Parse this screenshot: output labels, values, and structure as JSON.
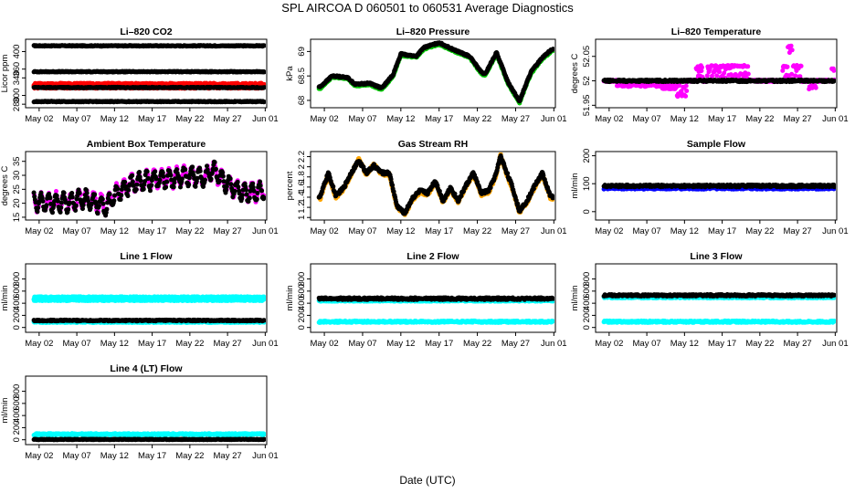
{
  "title": "SPL   AIRCOA D   060501 to 060531   Average Diagnostics",
  "xlabel": "Date (UTC)",
  "x_tick_labels": [
    "May 02",
    "May 07",
    "May 12",
    "May 17",
    "May 22",
    "May 27",
    "Jun 01"
  ],
  "x_tick_days": [
    2,
    7,
    12,
    17,
    22,
    27,
    32
  ],
  "x_range_days": [
    0.2,
    32.2
  ],
  "colors": {
    "black": "#000000",
    "red": "#ff0000",
    "green": "#00c800",
    "magenta": "#ff00ff",
    "orange": "#ffa500",
    "blue": "#0000ff",
    "cyan": "#00ffff"
  },
  "chart_data": [
    {
      "type": "scatter",
      "title": "Li–820 CO2",
      "ylabel": "Licor ppm",
      "yticks": [
        280,
        300,
        340,
        360,
        400
      ],
      "ylim": [
        272,
        428
      ],
      "series": [
        {
          "name": "ref-high",
          "color": "#000000",
          "shape": "flat",
          "level": 413,
          "amp": 1
        },
        {
          "name": "ref-mid",
          "color": "#000000",
          "shape": "flat",
          "level": 354,
          "amp": 1
        },
        {
          "name": "sample",
          "color": "#ff0000",
          "shape": "band",
          "level": 322,
          "amp": 6
        },
        {
          "name": "ref-low2",
          "color": "#000000",
          "shape": "flat",
          "level": 318,
          "amp": 1
        },
        {
          "name": "ref-low",
          "color": "#000000",
          "shape": "flat",
          "level": 286,
          "amp": 1
        }
      ]
    },
    {
      "type": "scatter",
      "title": "Li–820 Pressure",
      "ylabel": "kPa",
      "yticks": [
        68.0,
        68.5,
        69.0
      ],
      "ylim": [
        67.85,
        69.25
      ],
      "series": [
        {
          "name": "line2",
          "color": "#00c800",
          "shape": "wave",
          "amp": 0.03,
          "knots": [
            [
              1.5,
              68.25
            ],
            [
              3,
              68.48
            ],
            [
              5,
              68.45
            ],
            [
              6,
              68.3
            ],
            [
              8,
              68.32
            ],
            [
              9.5,
              68.22
            ],
            [
              11,
              68.5
            ],
            [
              12,
              68.92
            ],
            [
              14,
              68.88
            ],
            [
              15,
              69.05
            ],
            [
              17,
              69.15
            ],
            [
              19,
              69.0
            ],
            [
              21,
              68.88
            ],
            [
              22.5,
              68.55
            ],
            [
              23,
              68.5
            ],
            [
              24.5,
              68.95
            ],
            [
              26,
              68.35
            ],
            [
              27.5,
              67.95
            ],
            [
              29,
              68.55
            ],
            [
              30.5,
              68.85
            ],
            [
              31.8,
              69.02
            ]
          ]
        },
        {
          "name": "line1",
          "color": "#000000",
          "shape": "wave",
          "amp": 0.03,
          "knots": [
            [
              1.5,
              68.28
            ],
            [
              3,
              68.5
            ],
            [
              5,
              68.47
            ],
            [
              6,
              68.33
            ],
            [
              8,
              68.35
            ],
            [
              9.5,
              68.25
            ],
            [
              11,
              68.53
            ],
            [
              12,
              68.95
            ],
            [
              14,
              68.9
            ],
            [
              15,
              69.08
            ],
            [
              17,
              69.18
            ],
            [
              19,
              69.03
            ],
            [
              21,
              68.9
            ],
            [
              22.5,
              68.58
            ],
            [
              23,
              68.53
            ],
            [
              24.5,
              68.98
            ],
            [
              26,
              68.38
            ],
            [
              27.5,
              67.98
            ],
            [
              29,
              68.58
            ],
            [
              30.5,
              68.88
            ],
            [
              31.8,
              69.05
            ]
          ]
        }
      ]
    },
    {
      "type": "scatter",
      "title": "Li–820 Temperature",
      "ylabel": "degrees C",
      "yticks": [
        51.95,
        52.0,
        52.05
      ],
      "ylim": [
        51.945,
        52.085
      ],
      "series": [
        {
          "name": "cell-temp",
          "color": "#ff00ff",
          "shape": "steps",
          "level": 52.0,
          "segments": [
            [
              3,
              9,
              51.99
            ],
            [
              9,
              11,
              51.985
            ],
            [
              11,
              12.3,
              51.97
            ],
            [
              13.5,
              14.5,
              52.03
            ],
            [
              15,
              20.5,
              52.03
            ],
            [
              25,
              27.5,
              52.03
            ],
            [
              25.7,
              26.3,
              52.07
            ],
            [
              28.5,
              29.5,
              51.985
            ],
            [
              31.5,
              32,
              52.025
            ]
          ]
        },
        {
          "name": "block-temp",
          "color": "#000000",
          "shape": "flat",
          "level": 52.0,
          "amp": 0.002
        }
      ]
    },
    {
      "type": "scatter",
      "title": "Ambient Box Temperature",
      "ylabel": "degrees C",
      "yticks": [
        15,
        20,
        25,
        30,
        35
      ],
      "ylim": [
        14,
        38.5
      ],
      "series": [
        {
          "name": "box-temp-mag",
          "color": "#ff00ff",
          "shape": "noisy",
          "amp": 3.5,
          "dx": 0.08,
          "knots": [
            [
              1.5,
              20.5
            ],
            [
              4,
              20.5
            ],
            [
              6,
              20.5
            ],
            [
              8,
              22
            ],
            [
              10,
              20
            ],
            [
              11,
              19
            ],
            [
              12,
              23
            ],
            [
              14,
              27
            ],
            [
              16,
              28
            ],
            [
              18,
              29
            ],
            [
              20,
              29
            ],
            [
              21,
              30
            ],
            [
              22,
              30
            ],
            [
              24,
              29
            ],
            [
              25,
              32
            ],
            [
              27,
              27
            ],
            [
              29,
              24
            ],
            [
              31,
              24
            ],
            [
              32,
              25
            ]
          ]
        },
        {
          "name": "box-temp",
          "color": "#000000",
          "shape": "noisy",
          "amp": 3.5,
          "dx": 0.08,
          "knots": [
            [
              1.5,
              20.3
            ],
            [
              4,
              20.3
            ],
            [
              6,
              20.3
            ],
            [
              8,
              21.8
            ],
            [
              10,
              19.8
            ],
            [
              11,
              18.8
            ],
            [
              12,
              22.8
            ],
            [
              14,
              26.8
            ],
            [
              16,
              27.8
            ],
            [
              18,
              28.8
            ],
            [
              20,
              28.8
            ],
            [
              21,
              29.8
            ],
            [
              22,
              29.8
            ],
            [
              24,
              28.8
            ],
            [
              25,
              31.8
            ],
            [
              27,
              26.8
            ],
            [
              29,
              23.8
            ],
            [
              31,
              23.8
            ],
            [
              32,
              24.8
            ]
          ]
        }
      ]
    },
    {
      "type": "scatter",
      "title": "Gas Stream RH",
      "ylabel": "percent",
      "yticks": [
        1.0,
        1.2,
        1.4,
        1.6,
        1.8,
        2.0,
        2.2
      ],
      "ylim": [
        0.95,
        2.3
      ],
      "series": [
        {
          "name": "rh-orange",
          "color": "#ffa500",
          "shape": "wave",
          "amp": 0.06,
          "knots": [
            [
              1.5,
              1.38
            ],
            [
              2.5,
              1.85
            ],
            [
              3.5,
              1.4
            ],
            [
              4.5,
              1.55
            ],
            [
              5.5,
              1.85
            ],
            [
              6.5,
              2.15
            ],
            [
              7.5,
              1.85
            ],
            [
              8.5,
              2.05
            ],
            [
              9.5,
              1.85
            ],
            [
              10.5,
              1.85
            ],
            [
              11.5,
              1.2
            ],
            [
              12.5,
              1.05
            ],
            [
              13.5,
              1.35
            ],
            [
              14.5,
              1.5
            ],
            [
              15.5,
              1.45
            ],
            [
              16.5,
              1.7
            ],
            [
              17.5,
              1.3
            ],
            [
              18.5,
              1.55
            ],
            [
              19.5,
              1.3
            ],
            [
              20.5,
              1.6
            ],
            [
              21.5,
              1.85
            ],
            [
              22.5,
              1.45
            ],
            [
              23.5,
              1.5
            ],
            [
              24.5,
              1.85
            ],
            [
              25,
              2.25
            ],
            [
              25.5,
              2.0
            ],
            [
              26.5,
              1.6
            ],
            [
              27.5,
              1.1
            ],
            [
              28.5,
              1.3
            ],
            [
              29.5,
              1.6
            ],
            [
              30.5,
              1.85
            ],
            [
              31.5,
              1.4
            ],
            [
              32,
              1.35
            ]
          ]
        },
        {
          "name": "rh",
          "color": "#000000",
          "shape": "wave",
          "amp": 0.06,
          "knots": [
            [
              1.5,
              1.42
            ],
            [
              2.5,
              1.88
            ],
            [
              3.5,
              1.43
            ],
            [
              4.5,
              1.58
            ],
            [
              5.5,
              1.88
            ],
            [
              6.5,
              2.12
            ],
            [
              7.5,
              1.88
            ],
            [
              8.5,
              2.02
            ],
            [
              9.5,
              1.88
            ],
            [
              10.5,
              1.88
            ],
            [
              11.5,
              1.23
            ],
            [
              12.5,
              1.08
            ],
            [
              13.5,
              1.38
            ],
            [
              14.5,
              1.53
            ],
            [
              15.5,
              1.48
            ],
            [
              16.5,
              1.73
            ],
            [
              17.5,
              1.33
            ],
            [
              18.5,
              1.58
            ],
            [
              19.5,
              1.33
            ],
            [
              20.5,
              1.63
            ],
            [
              21.5,
              1.88
            ],
            [
              22.5,
              1.48
            ],
            [
              23.5,
              1.53
            ],
            [
              24.5,
              1.88
            ],
            [
              25,
              2.22
            ],
            [
              25.5,
              2.03
            ],
            [
              26.5,
              1.63
            ],
            [
              27.5,
              1.13
            ],
            [
              28.5,
              1.33
            ],
            [
              29.5,
              1.63
            ],
            [
              30.5,
              1.88
            ],
            [
              31.5,
              1.43
            ],
            [
              32,
              1.38
            ]
          ]
        }
      ]
    },
    {
      "type": "scatter",
      "title": "Sample Flow",
      "ylabel": "ml/min",
      "yticks": [
        0,
        100,
        200
      ],
      "ylim": [
        -30,
        215
      ],
      "series": [
        {
          "name": "sample-flow-blue",
          "color": "#0000ff",
          "shape": "flat",
          "level": 84,
          "amp": 4
        },
        {
          "name": "sample-flow",
          "color": "#000000",
          "shape": "flat",
          "level": 92,
          "amp": 4
        }
      ]
    },
    {
      "type": "scatter",
      "title": "Line 1 Flow",
      "ylabel": "ml/min",
      "yticks": [
        0,
        200,
        400,
        600,
        800
      ],
      "ylim": [
        -80,
        1050
      ],
      "series": [
        {
          "name": "line1-cyan-high",
          "color": "#00ffff",
          "shape": "band",
          "level": 475,
          "amp": 35
        },
        {
          "name": "line1-cyan-low",
          "color": "#00ffff",
          "shape": "flat",
          "level": 90,
          "amp": 12
        },
        {
          "name": "line1-black",
          "color": "#000000",
          "shape": "flat",
          "level": 115,
          "amp": 10
        }
      ]
    },
    {
      "type": "scatter",
      "title": "Line 2 Flow",
      "ylabel": "ml/min",
      "yticks": [
        0,
        200,
        400,
        600,
        800
      ],
      "ylim": [
        -80,
        1050
      ],
      "series": [
        {
          "name": "line2-cyan-high",
          "color": "#00ffff",
          "shape": "flat",
          "level": 440,
          "amp": 10
        },
        {
          "name": "line2-black",
          "color": "#000000",
          "shape": "flat",
          "level": 475,
          "amp": 18
        },
        {
          "name": "line2-cyan-low",
          "color": "#00ffff",
          "shape": "flat",
          "level": 95,
          "amp": 15
        }
      ]
    },
    {
      "type": "scatter",
      "title": "Line 3 Flow",
      "ylabel": "ml/min",
      "yticks": [
        0,
        200,
        400,
        600,
        800
      ],
      "ylim": [
        -80,
        1050
      ],
      "series": [
        {
          "name": "line3-cyan-high",
          "color": "#00ffff",
          "shape": "flat",
          "level": 495,
          "amp": 12
        },
        {
          "name": "line3-black",
          "color": "#000000",
          "shape": "flat",
          "level": 530,
          "amp": 15
        },
        {
          "name": "line3-cyan-low",
          "color": "#00ffff",
          "shape": "flat",
          "level": 95,
          "amp": 15
        }
      ]
    },
    {
      "type": "scatter",
      "title": "Line 4 (LT) Flow",
      "ylabel": "ml/min",
      "yticks": [
        0,
        200,
        400,
        600,
        800
      ],
      "ylim": [
        -80,
        1050
      ],
      "series": [
        {
          "name": "line4-cyan",
          "color": "#00ffff",
          "shape": "flat",
          "level": 90,
          "amp": 14
        },
        {
          "name": "line4-black",
          "color": "#000000",
          "shape": "flat",
          "level": 5,
          "amp": 6
        }
      ]
    }
  ]
}
